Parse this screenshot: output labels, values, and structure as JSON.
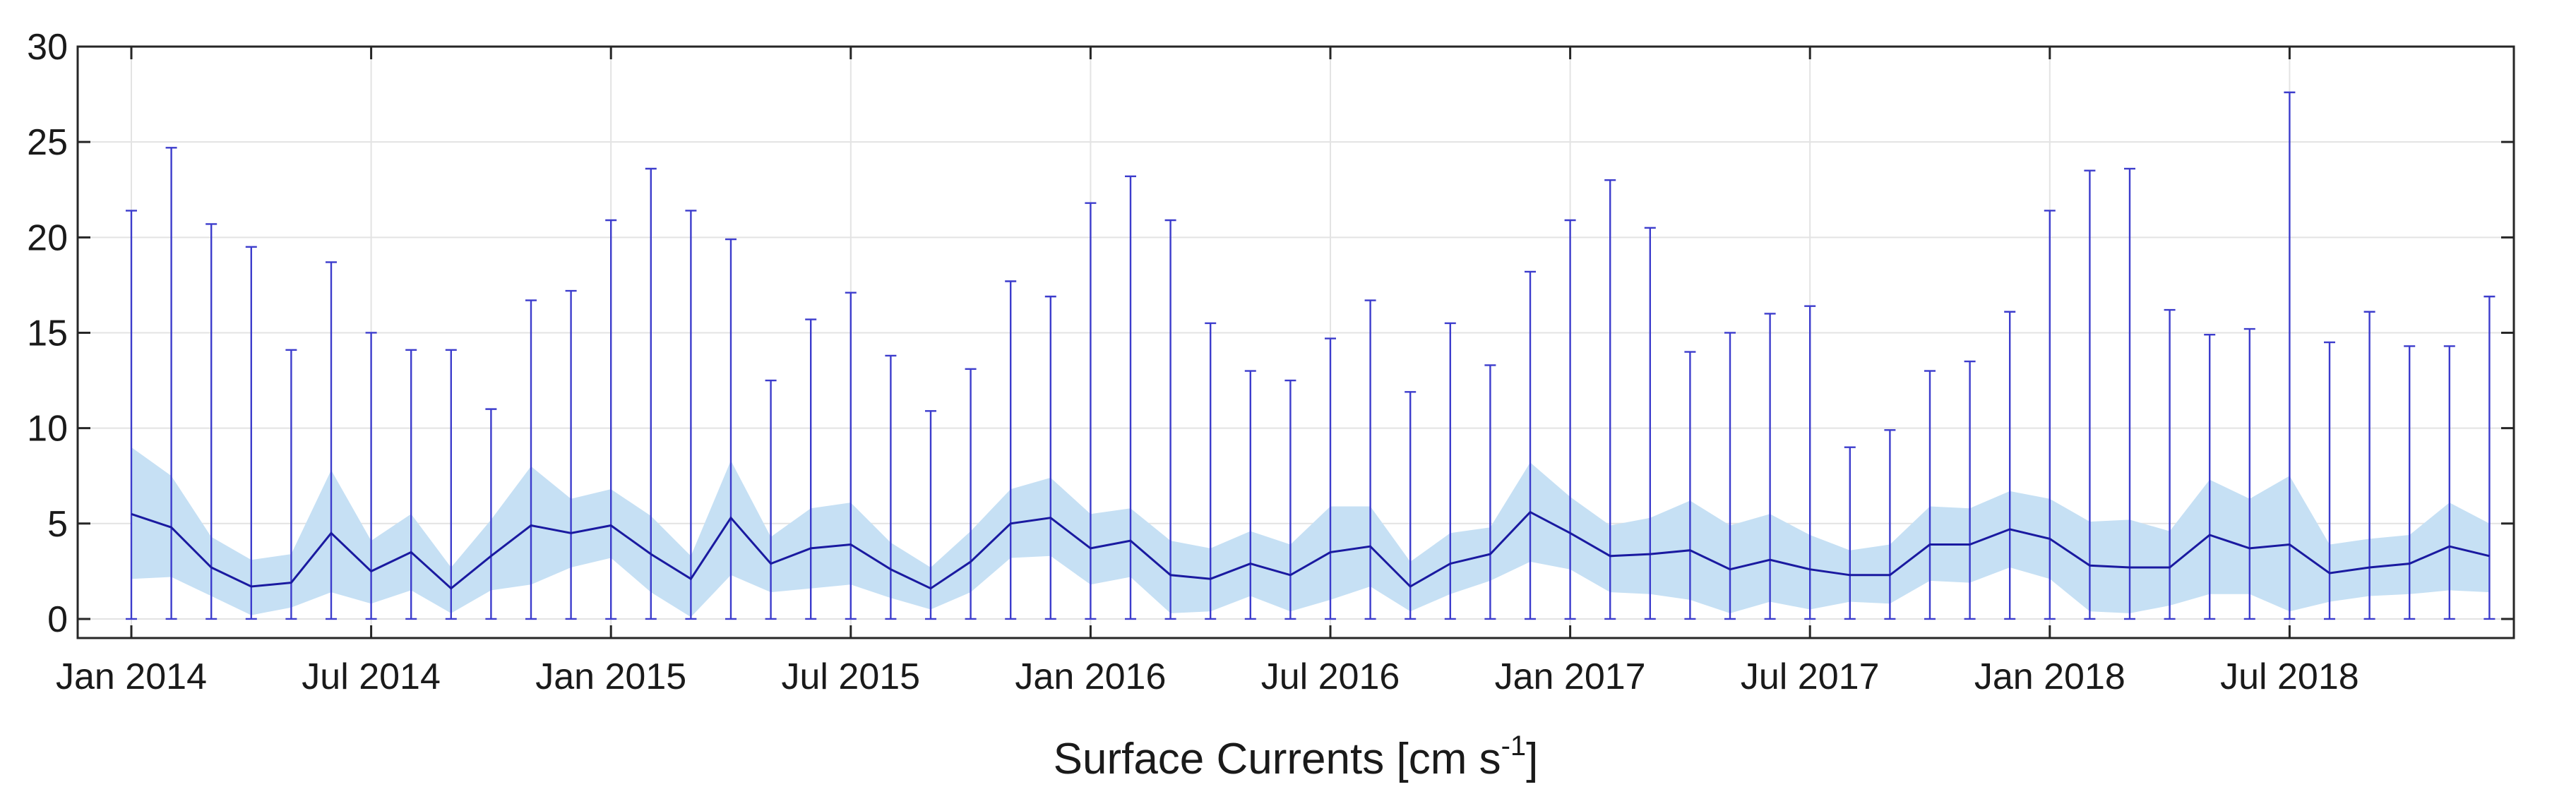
{
  "chart_data": {
    "type": "line",
    "title": "",
    "xlabel": "Surface Currents [cm s",
    "xlabel_superscript": "-1",
    "xlabel_suffix": "]",
    "ylabel": "",
    "ylim": [
      -1,
      30
    ],
    "grid": true,
    "y_ticks": [
      0,
      5,
      10,
      15,
      20,
      25,
      30
    ],
    "x_tick_labels": [
      "Jan 2014",
      "Jul 2014",
      "Jan 2015",
      "Jul 2015",
      "Jan 2016",
      "Jul 2016",
      "Jan 2017",
      "Jul 2017",
      "Jan 2018",
      "Jul 2018"
    ],
    "x_tick_month_index": [
      0,
      6,
      12,
      18,
      24,
      30,
      36,
      42,
      48,
      54
    ],
    "colors": {
      "mean_line": "#1a1aa0",
      "band": "#c6e0f4",
      "whisker": "#3c3ccc",
      "grid": "#e3e3e3",
      "axis": "#262626"
    },
    "series": [
      {
        "name": "mean",
        "values": [
          5.5,
          4.8,
          2.7,
          1.7,
          1.9,
          4.5,
          2.5,
          3.5,
          1.6,
          3.3,
          4.9,
          4.5,
          4.9,
          3.4,
          2.1,
          5.3,
          2.9,
          3.7,
          3.9,
          2.6,
          1.6,
          3.0,
          5.0,
          5.3,
          3.7,
          4.1,
          2.3,
          2.1,
          2.9,
          2.3,
          3.5,
          3.8,
          1.7,
          2.9,
          3.4,
          5.6,
          4.5,
          3.3,
          3.4,
          3.6,
          2.6,
          3.1,
          2.6,
          2.3,
          2.3,
          3.9,
          3.9,
          4.7,
          4.2,
          2.8,
          2.7,
          2.7,
          4.4,
          3.7,
          3.9,
          2.4,
          2.7,
          2.9,
          3.8,
          3.3
        ]
      },
      {
        "name": "band_upper",
        "values": [
          9.0,
          7.5,
          4.3,
          3.1,
          3.4,
          7.8,
          4.1,
          5.5,
          2.7,
          5.2,
          8.0,
          6.3,
          6.8,
          5.4,
          3.3,
          8.3,
          4.3,
          5.8,
          6.1,
          4.0,
          2.7,
          4.6,
          6.8,
          7.4,
          5.5,
          5.8,
          4.1,
          3.7,
          4.6,
          3.9,
          5.9,
          5.9,
          3.0,
          4.5,
          4.8,
          8.2,
          6.4,
          4.9,
          5.3,
          6.2,
          4.9,
          5.5,
          4.4,
          3.6,
          3.9,
          5.9,
          5.8,
          6.7,
          6.3,
          5.1,
          5.2,
          4.6,
          7.3,
          6.3,
          7.5,
          3.9,
          4.2,
          4.4,
          6.1,
          5.0
        ]
      },
      {
        "name": "band_lower",
        "values": [
          2.1,
          2.2,
          1.2,
          0.2,
          0.6,
          1.4,
          0.8,
          1.5,
          0.3,
          1.5,
          1.8,
          2.7,
          3.2,
          1.4,
          0.1,
          2.3,
          1.4,
          1.6,
          1.8,
          1.1,
          0.5,
          1.4,
          3.2,
          3.3,
          1.8,
          2.2,
          0.3,
          0.4,
          1.2,
          0.4,
          1.0,
          1.7,
          0.4,
          1.3,
          2.0,
          3.0,
          2.6,
          1.4,
          1.3,
          1.0,
          0.3,
          0.9,
          0.5,
          0.9,
          0.8,
          2.0,
          1.9,
          2.7,
          2.1,
          0.4,
          0.3,
          0.7,
          1.3,
          1.3,
          0.4,
          0.9,
          1.2,
          1.3,
          1.5,
          1.4
        ]
      },
      {
        "name": "maximum",
        "values": [
          21.4,
          24.7,
          20.7,
          19.5,
          14.1,
          18.7,
          15.0,
          14.1,
          14.1,
          11.0,
          16.7,
          17.2,
          20.9,
          23.6,
          21.4,
          19.9,
          12.5,
          15.7,
          17.1,
          13.8,
          10.9,
          13.1,
          17.7,
          16.9,
          21.8,
          23.2,
          20.9,
          15.5,
          13.0,
          12.5,
          14.7,
          16.7,
          11.9,
          15.5,
          13.3,
          18.2,
          20.9,
          23.0,
          20.5,
          14.0,
          15.0,
          16.0,
          16.4,
          9.0,
          9.9,
          13.0,
          13.5,
          16.1,
          21.4,
          23.5,
          23.6,
          16.2,
          14.9,
          15.2,
          27.6,
          14.5,
          16.1,
          14.3,
          14.3,
          16.9
        ]
      },
      {
        "name": "minimum",
        "values": [
          0.0,
          0.0,
          0.0,
          0.0,
          0.0,
          0.0,
          0.0,
          0.0,
          0.0,
          0.0,
          0.0,
          0.0,
          0.0,
          0.0,
          0.0,
          0.0,
          0.0,
          0.0,
          0.0,
          0.0,
          0.0,
          0.0,
          0.0,
          0.0,
          0.0,
          0.0,
          0.0,
          0.0,
          0.0,
          0.0,
          0.0,
          0.0,
          0.0,
          0.0,
          0.0,
          0.0,
          0.0,
          0.0,
          0.0,
          0.0,
          0.0,
          0.0,
          0.0,
          0.0,
          0.0,
          0.0,
          0.0,
          0.0,
          0.0,
          0.0,
          0.0,
          0.0,
          0.0,
          0.0,
          0.0,
          0.0,
          0.0,
          0.0,
          0.0,
          0.0
        ]
      }
    ]
  }
}
